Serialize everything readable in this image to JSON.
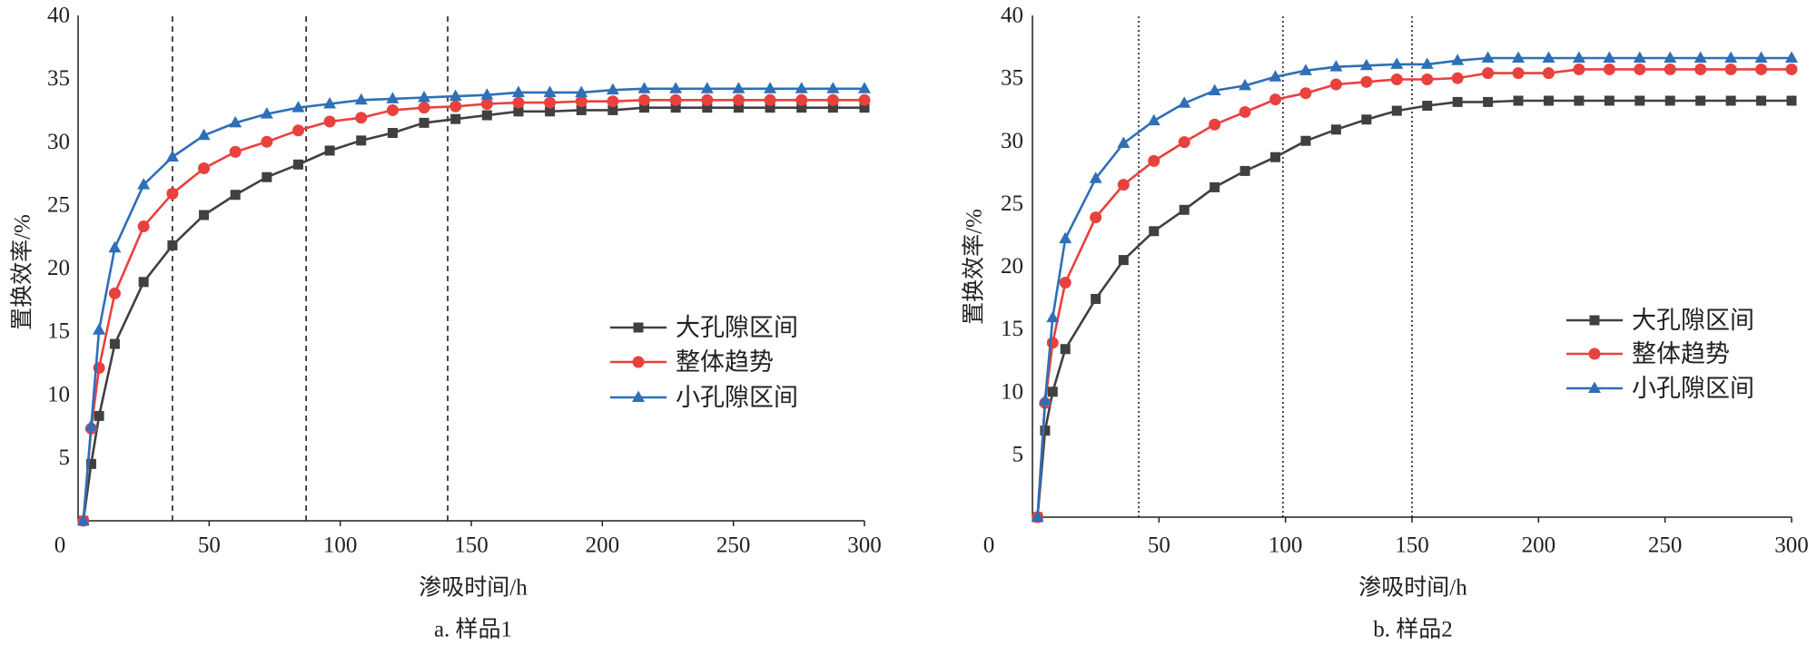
{
  "chart_data": [
    {
      "type": "line",
      "caption": "a. 样品1",
      "xlabel": "渗吸时间/h",
      "ylabel": "置换效率/%",
      "xlim": [
        0,
        300
      ],
      "ylim": [
        0,
        40
      ],
      "x_ticks": [
        0,
        50,
        100,
        150,
        200,
        250,
        300
      ],
      "y_ticks": [
        5,
        10,
        15,
        20,
        25,
        30,
        35,
        40
      ],
      "grid": false,
      "legend": "right",
      "vlines": [
        36,
        87,
        141
      ],
      "vline_style": "dashed",
      "x": [
        2,
        5,
        8,
        14,
        25,
        36,
        48,
        60,
        72,
        84,
        96,
        108,
        120,
        132,
        144,
        156,
        168,
        180,
        192,
        204,
        216,
        228,
        240,
        252,
        264,
        276,
        288,
        300
      ],
      "series": [
        {
          "name": "大孔隙区间",
          "marker": "square",
          "color": "#404040",
          "values": [
            0,
            4.5,
            8.3,
            14.0,
            18.9,
            21.8,
            24.2,
            25.8,
            27.2,
            28.2,
            29.3,
            30.1,
            30.7,
            31.5,
            31.8,
            32.1,
            32.4,
            32.4,
            32.5,
            32.5,
            32.7,
            32.7,
            32.7,
            32.7,
            32.7,
            32.7,
            32.7,
            32.7
          ]
        },
        {
          "name": "整体趋势",
          "marker": "circle",
          "color": "#e8413e",
          "values": [
            0,
            7.3,
            12.1,
            18.0,
            23.3,
            25.9,
            27.9,
            29.2,
            30.0,
            30.9,
            31.6,
            31.9,
            32.5,
            32.7,
            32.8,
            33.0,
            33.1,
            33.1,
            33.2,
            33.2,
            33.3,
            33.3,
            33.3,
            33.3,
            33.3,
            33.3,
            33.3,
            33.3
          ]
        },
        {
          "name": "小孔隙区间",
          "marker": "triangle",
          "color": "#2e6fb7",
          "values": [
            0,
            7.5,
            15.1,
            21.6,
            26.6,
            28.8,
            30.5,
            31.5,
            32.2,
            32.7,
            33.0,
            33.3,
            33.4,
            33.5,
            33.6,
            33.7,
            33.9,
            33.9,
            33.9,
            34.1,
            34.2,
            34.2,
            34.2,
            34.2,
            34.2,
            34.2,
            34.2,
            34.2
          ]
        }
      ]
    },
    {
      "type": "line",
      "caption": "b. 样品2",
      "xlabel": "渗吸时间/h",
      "ylabel": "置换效率/%",
      "xlim": [
        0,
        300
      ],
      "ylim": [
        0,
        40
      ],
      "x_ticks": [
        0,
        50,
        100,
        150,
        200,
        250,
        300
      ],
      "y_ticks": [
        5,
        10,
        15,
        20,
        25,
        30,
        35,
        40
      ],
      "grid": false,
      "legend": "right",
      "vlines": [
        42,
        99,
        150
      ],
      "vline_style": "dotted",
      "x": [
        2,
        5,
        8,
        13,
        25,
        36,
        48,
        60,
        72,
        84,
        96,
        108,
        120,
        132,
        144,
        156,
        168,
        180,
        192,
        204,
        216,
        228,
        240,
        252,
        264,
        276,
        288,
        300
      ],
      "series": [
        {
          "name": "大孔隙区间",
          "marker": "square",
          "color": "#404040",
          "values": [
            0,
            6.9,
            10.0,
            13.4,
            17.4,
            20.5,
            22.8,
            24.5,
            26.3,
            27.6,
            28.7,
            30.0,
            30.9,
            31.7,
            32.4,
            32.8,
            33.1,
            33.1,
            33.2,
            33.2,
            33.2,
            33.2,
            33.2,
            33.2,
            33.2,
            33.2,
            33.2,
            33.2
          ]
        },
        {
          "name": "整体趋势",
          "marker": "circle",
          "color": "#e8413e",
          "values": [
            0,
            9.1,
            13.9,
            18.7,
            23.9,
            26.5,
            28.4,
            29.9,
            31.3,
            32.3,
            33.3,
            33.8,
            34.5,
            34.7,
            34.9,
            34.9,
            35.0,
            35.4,
            35.4,
            35.4,
            35.7,
            35.7,
            35.7,
            35.7,
            35.7,
            35.7,
            35.7,
            35.7
          ]
        },
        {
          "name": "小孔隙区间",
          "marker": "triangle",
          "color": "#2e6fb7",
          "values": [
            0,
            9.3,
            15.9,
            22.2,
            27.0,
            29.8,
            31.6,
            33.0,
            34.0,
            34.4,
            35.1,
            35.6,
            35.9,
            36.0,
            36.1,
            36.1,
            36.4,
            36.6,
            36.6,
            36.6,
            36.6,
            36.6,
            36.6,
            36.6,
            36.6,
            36.6,
            36.6,
            36.6
          ]
        }
      ]
    }
  ]
}
